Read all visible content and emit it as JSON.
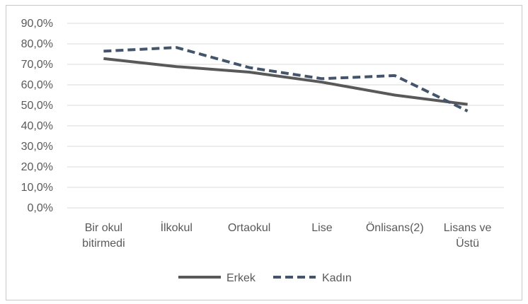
{
  "chart_data": {
    "type": "line",
    "categories": [
      [
        "Bir okul",
        "bitirmedi"
      ],
      [
        "İlkokul"
      ],
      [
        "Ortaokul"
      ],
      [
        "Lise"
      ],
      [
        "Önlisans(2)"
      ],
      [
        "Lisans ve",
        "Üstü"
      ]
    ],
    "y_ticks": [
      "0,0%",
      "10,0%",
      "20,0%",
      "30,0%",
      "40,0%",
      "50,0%",
      "60,0%",
      "70,0%",
      "80,0%",
      "90,0%"
    ],
    "ylim": [
      0,
      90
    ],
    "grid": true,
    "legend_position": "bottom",
    "series": [
      {
        "name": "Erkek",
        "values": [
          72.8,
          68.9,
          66.2,
          61.3,
          55.0,
          50.5
        ],
        "color": "#595959",
        "style": "solid"
      },
      {
        "name": "Kadın",
        "values": [
          76.4,
          78.2,
          68.4,
          63.0,
          64.5,
          47.2
        ],
        "color": "#44546a",
        "style": "dashed"
      }
    ]
  }
}
